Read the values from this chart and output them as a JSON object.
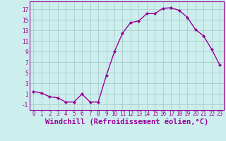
{
  "x": [
    0,
    1,
    2,
    3,
    4,
    5,
    6,
    7,
    8,
    9,
    10,
    11,
    12,
    13,
    14,
    15,
    16,
    17,
    18,
    19,
    20,
    21,
    22,
    23
  ],
  "y": [
    1.5,
    1.2,
    0.5,
    0.3,
    -0.5,
    -0.5,
    1.0,
    -0.5,
    -0.5,
    4.5,
    9.0,
    12.5,
    14.5,
    14.8,
    16.2,
    16.2,
    17.2,
    17.3,
    16.8,
    15.5,
    13.2,
    12.0,
    9.5,
    6.5
  ],
  "line_color": "#990099",
  "marker": "D",
  "marker_size": 2.0,
  "bg_color": "#cceeed",
  "grid_color": "#aacccc",
  "xlabel": "Windchill (Refroidissement éolien,°C)",
  "xlim": [
    -0.5,
    23.5
  ],
  "ylim": [
    -2,
    18.5
  ],
  "yticks": [
    -1,
    1,
    3,
    5,
    7,
    9,
    11,
    13,
    15,
    17
  ],
  "xticks": [
    0,
    1,
    2,
    3,
    4,
    5,
    6,
    7,
    8,
    9,
    10,
    11,
    12,
    13,
    14,
    15,
    16,
    17,
    18,
    19,
    20,
    21,
    22,
    23
  ],
  "tick_label_fontsize": 5.5,
  "xlabel_fontsize": 7.5,
  "linewidth": 1.0
}
